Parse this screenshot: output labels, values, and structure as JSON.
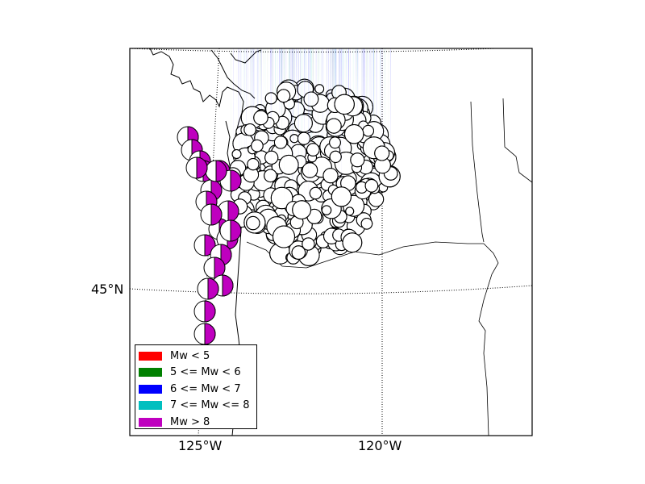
{
  "map": {
    "grid_labels": {
      "lat_45": "45°N",
      "lon_125": "125°W",
      "lon_120": "120°W"
    },
    "colors": {
      "mw_lt_5": "#ff0000",
      "mw_5_6": "#008000",
      "mw_6_7": "#0000ff",
      "mw_7_8": "#00bfbf",
      "mw_gt_8": "#bf00bf"
    },
    "legend": [
      {
        "label": "Mw < 5",
        "color": "#ff0000"
      },
      {
        "label": "5 <= Mw < 6",
        "color": "#008000"
      },
      {
        "label": "6 <= Mw < 7",
        "color": "#0000ff"
      },
      {
        "label": "7 <= Mw <= 8",
        "color": "#00bfbf"
      },
      {
        "label": "Mw > 8",
        "color": "#bf00bf"
      }
    ],
    "icon_names": [
      "focal-mechanism-beachball-icon"
    ]
  }
}
